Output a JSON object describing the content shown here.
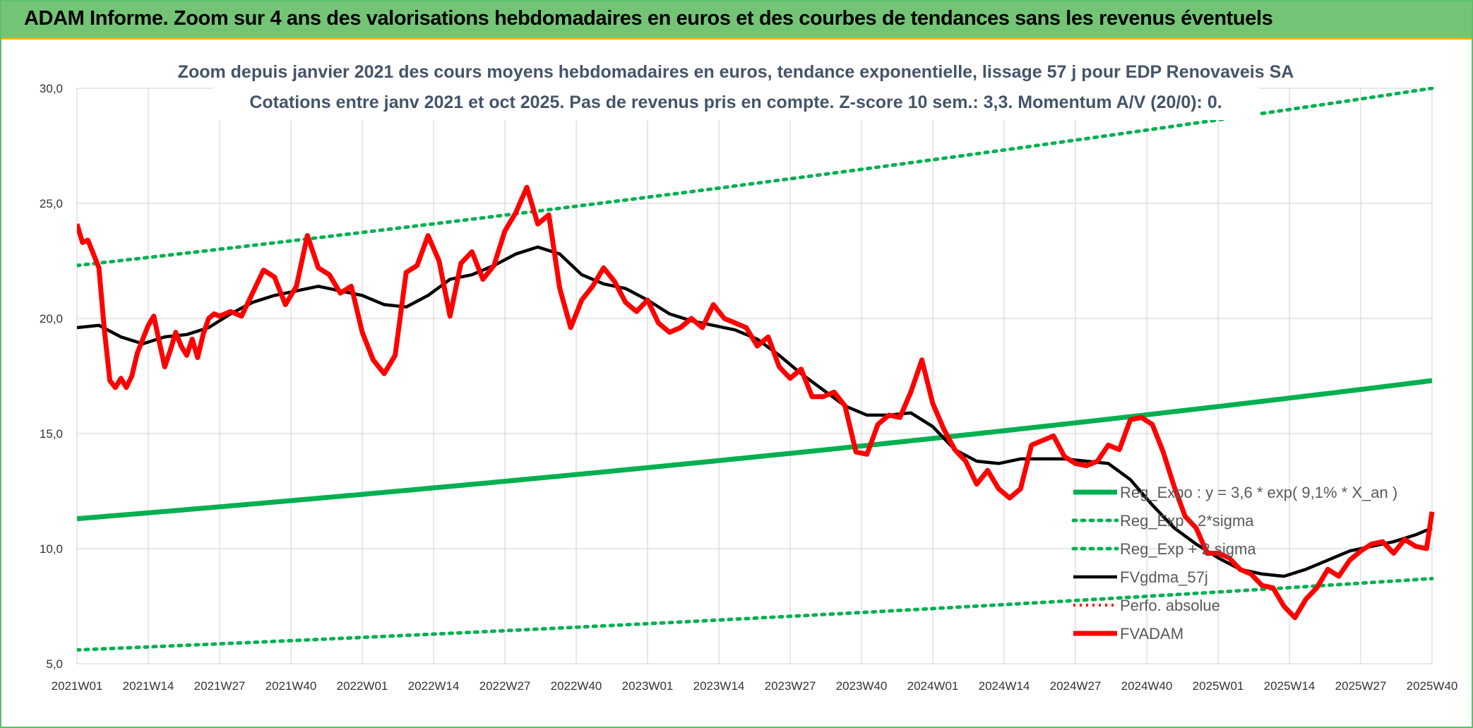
{
  "banner": {
    "title": "ADAM Informe. Zoom sur 4 ans des valorisations hebdomadaires en euros et des courbes de tendances sans les revenus éventuels"
  },
  "chart_data": {
    "type": "line",
    "title": "Zoom depuis janvier 2021 des cours moyens hebdomadaires en euros, tendance exponentielle, lissage 57 j pour EDP Renovaveis SA",
    "subtitle": "Cotations entre janv 2021 et oct 2025. Pas de revenus pris en compte. Z-score 10 sem.: 3,3. Momentum A/V (20/0): 0.",
    "ylim": [
      5,
      30
    ],
    "y_ticks": [
      "5,0",
      "10,0",
      "15,0",
      "20,0",
      "25,0",
      "30,0"
    ],
    "x_ticks": [
      "2021W01",
      "2021W14",
      "2021W27",
      "2021W40",
      "2022W01",
      "2022W14",
      "2022W27",
      "2022W40",
      "2023W01",
      "2023W14",
      "2023W27",
      "2023W40",
      "2024W01",
      "2024W14",
      "2024W27",
      "2024W40",
      "2025W01",
      "2025W14",
      "2025W27",
      "2025W40"
    ],
    "grid": true,
    "legend_position": "bottom-right",
    "colors": {
      "green": "#00b050",
      "black": "#000000",
      "red": "#ff0000"
    },
    "series": [
      {
        "name": "Reg_Expo : y = 3,6 * exp( 9,1% *  X_an )",
        "style": "solid-green",
        "values": [
          11.3,
          11.7,
          12.1,
          12.6,
          13.1,
          13.5,
          14.0,
          14.5,
          15.0,
          15.6,
          16.1,
          16.7,
          17.3
        ],
        "x_index": [
          0,
          13,
          26,
          39,
          52,
          65,
          78,
          91,
          104,
          117,
          130,
          143,
          247
        ]
      },
      {
        "name": "Reg_Exp - 2*sigma",
        "style": "dotted-green",
        "values": [
          5.6,
          8.7
        ],
        "x_index": [
          0,
          247
        ]
      },
      {
        "name": "Reg_Exp + 2 sigma",
        "style": "dotted-green",
        "values": [
          22.3,
          30.0
        ],
        "x_index": [
          0,
          247
        ]
      },
      {
        "name": "FVgdma_57j",
        "style": "solid-black",
        "x_index": [
          0,
          4,
          8,
          12,
          16,
          20,
          24,
          28,
          32,
          36,
          40,
          44,
          48,
          52,
          56,
          60,
          64,
          68,
          72,
          76,
          80,
          84,
          88,
          92,
          96,
          100,
          104,
          108,
          112,
          116,
          120,
          124,
          128,
          132,
          136,
          140,
          144,
          148,
          152,
          156,
          160,
          164,
          168,
          172,
          176,
          180,
          184,
          188,
          192,
          196,
          200,
          204,
          208,
          212,
          216,
          220,
          224,
          228,
          232,
          236,
          240,
          244,
          247
        ],
        "values": [
          19.6,
          19.7,
          19.2,
          18.9,
          19.2,
          19.3,
          19.6,
          20.2,
          20.7,
          21.0,
          21.2,
          21.4,
          21.2,
          21.0,
          20.6,
          20.5,
          21.0,
          21.7,
          21.9,
          22.3,
          22.8,
          23.1,
          22.8,
          21.9,
          21.5,
          21.3,
          20.8,
          20.2,
          19.9,
          19.7,
          19.5,
          19.1,
          18.4,
          17.6,
          16.9,
          16.2,
          15.8,
          15.8,
          15.9,
          15.3,
          14.3,
          13.8,
          13.7,
          13.9,
          13.9,
          13.9,
          13.8,
          13.7,
          13.0,
          11.9,
          10.9,
          10.2,
          9.6,
          9.1,
          8.9,
          8.8,
          9.1,
          9.5,
          9.9,
          10.1,
          10.3,
          10.6,
          10.9
        ]
      },
      {
        "name": "Perfo. absolue",
        "style": "dotted-red",
        "values": []
      },
      {
        "name": "FVADAM",
        "style": "solid-red",
        "x_index": [
          0,
          1,
          2,
          3,
          4,
          5,
          6,
          7,
          8,
          9,
          10,
          11,
          12,
          13,
          14,
          15,
          16,
          17,
          18,
          19,
          20,
          21,
          22,
          23,
          24,
          25,
          26,
          28,
          30,
          32,
          34,
          36,
          38,
          40,
          42,
          44,
          46,
          48,
          50,
          52,
          54,
          56,
          58,
          60,
          62,
          64,
          66,
          68,
          70,
          72,
          74,
          76,
          78,
          80,
          82,
          84,
          86,
          88,
          90,
          92,
          94,
          96,
          98,
          100,
          102,
          104,
          106,
          108,
          110,
          112,
          114,
          116,
          118,
          120,
          122,
          124,
          126,
          128,
          130,
          132,
          134,
          136,
          138,
          140,
          142,
          144,
          146,
          148,
          150,
          152,
          154,
          156,
          158,
          160,
          162,
          164,
          166,
          168,
          170,
          172,
          174,
          176,
          178,
          180,
          182,
          184,
          186,
          188,
          190,
          192,
          194,
          196,
          198,
          200,
          202,
          204,
          206,
          208,
          210,
          212,
          214,
          216,
          218,
          220,
          222,
          224,
          226,
          228,
          230,
          232,
          234,
          236,
          238,
          240,
          242,
          244,
          246,
          247
        ],
        "values": [
          24.1,
          23.3,
          23.4,
          22.8,
          22.2,
          19.5,
          17.3,
          17.0,
          17.4,
          17.0,
          17.5,
          18.5,
          19.1,
          19.7,
          20.1,
          19.0,
          17.9,
          18.6,
          19.4,
          18.8,
          18.4,
          19.1,
          18.3,
          19.3,
          20.0,
          20.2,
          20.1,
          20.3,
          20.1,
          21.1,
          22.1,
          21.8,
          20.6,
          21.4,
          23.6,
          22.2,
          21.9,
          21.1,
          21.4,
          19.4,
          18.2,
          17.6,
          18.4,
          22.0,
          22.3,
          23.6,
          22.5,
          20.1,
          22.4,
          22.9,
          21.7,
          22.3,
          23.8,
          24.6,
          25.7,
          24.1,
          24.5,
          21.3,
          19.6,
          20.8,
          21.4,
          22.2,
          21.6,
          20.7,
          20.3,
          20.8,
          19.8,
          19.4,
          19.6,
          20.0,
          19.6,
          20.6,
          20.0,
          19.8,
          19.6,
          18.8,
          19.2,
          17.9,
          17.4,
          17.8,
          16.6,
          16.6,
          16.8,
          16.2,
          14.2,
          14.1,
          15.4,
          15.8,
          15.7,
          16.8,
          18.2,
          16.3,
          15.2,
          14.3,
          13.8,
          12.8,
          13.4,
          12.6,
          12.2,
          12.6,
          14.5,
          14.7,
          14.9,
          14.0,
          13.7,
          13.6,
          13.8,
          14.5,
          14.3,
          15.6,
          15.7,
          15.4,
          14.2,
          12.7,
          11.4,
          10.9,
          9.8,
          9.8,
          9.6,
          9.1,
          8.9,
          8.4,
          8.3,
          7.5,
          7.0,
          7.8,
          8.3,
          9.1,
          8.8,
          9.5,
          9.9,
          10.2,
          10.3,
          9.8,
          10.4,
          10.1,
          10.0,
          11.6
        ]
      }
    ],
    "n_points": 248
  }
}
